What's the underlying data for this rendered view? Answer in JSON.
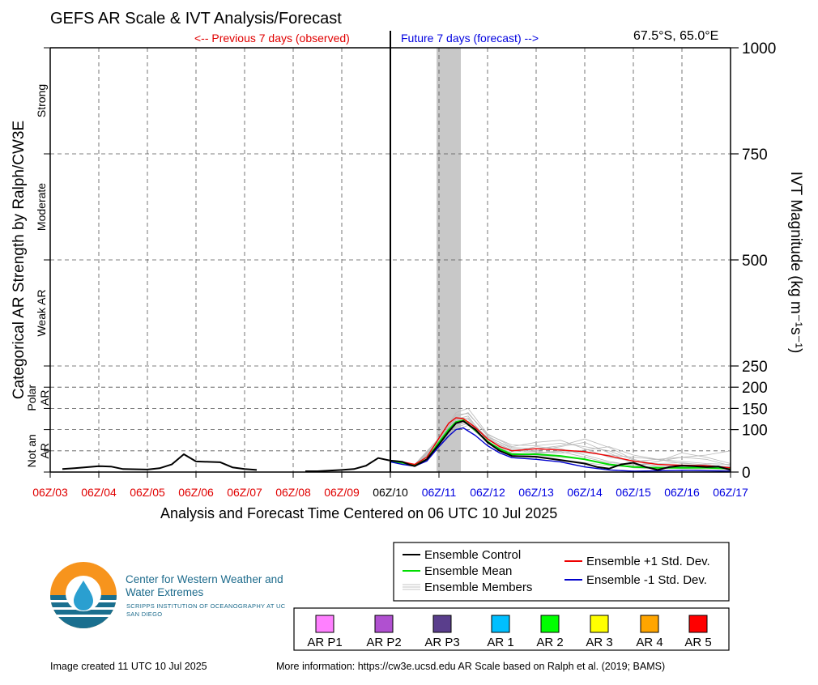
{
  "header": {
    "title": "GEFS AR Scale & IVT Analysis/Forecast",
    "previous_label": "<-- Previous 7 days (observed)",
    "future_label": "Future 7 days (forecast) -->",
    "location": "67.5°S, 65.0°E"
  },
  "footer": {
    "created": "Image created 11 UTC 10 Jul 2025",
    "more_info": "More information: https://cw3e.ucsd.edu AR Scale based on Ralph et al. (2019; BAMS)"
  },
  "logo": {
    "title": "Center for Western Weather and Water Extremes",
    "subtitle": "SCRIPPS INSTITUTION OF OCEANOGRAPHY AT UC SAN DIEGO"
  },
  "legend": {
    "lines": [
      {
        "label": "Ensemble Control",
        "color": "#000000"
      },
      {
        "label": "Ensemble Mean",
        "color": "#00dd00"
      },
      {
        "label": "Ensemble Members",
        "color": "#b0b0b0"
      },
      {
        "label": "Ensemble +1 Std. Dev.",
        "color": "#ee0000"
      },
      {
        "label": "Ensemble -1 Std. Dev.",
        "color": "#0000cc"
      }
    ],
    "ar_scale": [
      {
        "label": "AR P1",
        "color": "#ff80ff"
      },
      {
        "label": "AR P2",
        "color": "#b050d0"
      },
      {
        "label": "AR P3",
        "color": "#5a3e8c"
      },
      {
        "label": "AR 1",
        "color": "#00bfff"
      },
      {
        "label": "AR 2",
        "color": "#00ff00"
      },
      {
        "label": "AR 3",
        "color": "#ffff00"
      },
      {
        "label": "AR 4",
        "color": "#ffa500"
      },
      {
        "label": "AR 5",
        "color": "#ff0000"
      }
    ]
  },
  "chart_data": {
    "type": "line",
    "xlabel": "Analysis and Forecast Time Centered on 06 UTC 10 Jul 2025",
    "ylabel_right": "IVT Magnitude (kg m⁻¹s⁻¹)",
    "ylabel_left": "Categorical AR Strength by Ralph/CW3E",
    "x_tick_labels": [
      "06Z/03",
      "06Z/04",
      "06Z/05",
      "06Z/06",
      "06Z/07",
      "06Z/08",
      "06Z/09",
      "06Z/10",
      "06Z/11",
      "06Z/12",
      "06Z/13",
      "06Z/14",
      "06Z/15",
      "06Z/16",
      "06Z/17"
    ],
    "x_tick_colors": [
      "#e00000",
      "#e00000",
      "#e00000",
      "#e00000",
      "#e00000",
      "#e00000",
      "#e00000",
      "#000000",
      "#0000e0",
      "#0000e0",
      "#0000e0",
      "#0000e0",
      "#0000e0",
      "#0000e0",
      "#0000e0"
    ],
    "xlim_days": [
      0,
      14
    ],
    "analysis_time_day": 7,
    "shaded_window_days": [
      7.95,
      8.45
    ],
    "ylim": [
      0,
      1000
    ],
    "y_ticks_right": [
      0,
      100,
      150,
      200,
      250,
      500,
      750,
      1000
    ],
    "y_gridlines": [
      50,
      100,
      150,
      200,
      250,
      500,
      750
    ],
    "categories_left": [
      {
        "label": "Not an AR",
        "range": [
          0,
          100
        ]
      },
      {
        "label": "Polar AR",
        "range": [
          100,
          250
        ]
      },
      {
        "label": "Weak AR",
        "range": [
          250,
          500
        ]
      },
      {
        "label": "Moderate",
        "range": [
          500,
          750
        ]
      },
      {
        "label": "Strong",
        "range": [
          750,
          1000
        ]
      }
    ],
    "series": [
      {
        "name": "Ensemble Control",
        "color": "#000000",
        "x": [
          0.25,
          0.5,
          1,
          1.25,
          1.5,
          2,
          2.25,
          2.5,
          2.75,
          3,
          3.25,
          3.5,
          3.75,
          4,
          4.25,
          4.5,
          5.25,
          5.5,
          6,
          6.25,
          6.5,
          6.75,
          7,
          7.1,
          7.25,
          7.4,
          7.5,
          7.75,
          8,
          8.2,
          8.35,
          8.5,
          8.75,
          9,
          9.25,
          9.5,
          10,
          10.5,
          11,
          11.25,
          11.5,
          11.75,
          12,
          12.25,
          12.5,
          12.75,
          13,
          13.25,
          13.5,
          13.75,
          14
        ],
        "y": [
          7,
          9,
          14,
          13,
          7,
          6,
          9,
          18,
          42,
          25,
          24,
          23,
          11,
          7,
          5,
          null,
          2,
          2,
          5,
          7,
          15,
          33,
          27,
          26,
          24,
          17,
          14,
          30,
          65,
          95,
          115,
          120,
          100,
          70,
          50,
          38,
          36,
          28,
          20,
          12,
          8,
          18,
          22,
          12,
          5,
          12,
          15,
          14,
          12,
          13,
          5
        ]
      },
      {
        "name": "Ensemble Mean",
        "color": "#00dd00",
        "x": [
          7,
          7.25,
          7.5,
          7.75,
          8,
          8.2,
          8.35,
          8.5,
          8.75,
          9,
          9.25,
          9.5,
          10,
          10.5,
          11,
          11.5,
          12,
          12.5,
          13,
          13.5,
          14
        ],
        "y": [
          26,
          22,
          16,
          30,
          70,
          100,
          118,
          122,
          98,
          72,
          54,
          42,
          42,
          38,
          30,
          18,
          12,
          10,
          10,
          10,
          8
        ]
      },
      {
        "name": "Ensemble +1 Std. Dev.",
        "color": "#ee0000",
        "x": [
          7,
          7.25,
          7.5,
          7.75,
          8,
          8.2,
          8.35,
          8.5,
          8.75,
          9,
          9.25,
          9.5,
          10,
          10.5,
          11,
          11.5,
          12,
          12.5,
          13,
          13.5,
          14
        ],
        "y": [
          27,
          24,
          18,
          35,
          80,
          115,
          128,
          126,
          105,
          78,
          60,
          50,
          55,
          52,
          48,
          38,
          26,
          18,
          16,
          15,
          10
        ]
      },
      {
        "name": "Ensemble -1 Std. Dev.",
        "color": "#0000cc",
        "x": [
          7,
          7.25,
          7.5,
          7.75,
          8,
          8.2,
          8.35,
          8.5,
          8.75,
          9,
          9.25,
          9.5,
          10,
          10.5,
          11,
          11.5,
          12,
          12.5,
          13,
          13.5,
          14
        ],
        "y": [
          24,
          18,
          14,
          26,
          60,
          85,
          100,
          104,
          86,
          62,
          45,
          34,
          30,
          24,
          12,
          5,
          2,
          3,
          4,
          3,
          2
        ]
      }
    ],
    "members": [
      {
        "x": [
          7,
          7.5,
          8,
          8.35,
          8.6,
          9,
          9.5,
          10,
          10.5,
          11,
          11.5,
          12,
          12.5,
          13,
          13.5,
          14
        ],
        "y": [
          25,
          16,
          72,
          130,
          140,
          85,
          55,
          50,
          60,
          70,
          45,
          20,
          15,
          12,
          10,
          8
        ]
      },
      {
        "x": [
          7,
          7.5,
          8,
          8.35,
          8.6,
          9,
          9.5,
          10,
          10.5,
          11,
          11.5,
          12,
          12.5,
          13,
          13.5,
          14
        ],
        "y": [
          25,
          15,
          65,
          115,
          125,
          75,
          48,
          60,
          55,
          40,
          25,
          15,
          25,
          35,
          30,
          15
        ]
      },
      {
        "x": [
          7,
          7.5,
          8,
          8.35,
          8.6,
          9,
          9.5,
          10,
          10.5,
          11,
          11.5,
          12,
          12.5,
          13,
          13.5,
          14
        ],
        "y": [
          26,
          17,
          78,
          140,
          150,
          90,
          60,
          70,
          75,
          55,
          35,
          25,
          30,
          20,
          18,
          12
        ]
      },
      {
        "x": [
          7,
          7.5,
          8,
          8.35,
          8.6,
          9,
          9.5,
          10,
          10.5,
          11,
          11.5,
          12,
          12.5,
          13,
          13.5,
          14
        ],
        "y": [
          24,
          14,
          58,
          100,
          110,
          70,
          45,
          40,
          35,
          30,
          20,
          10,
          8,
          10,
          12,
          10
        ]
      },
      {
        "x": [
          7,
          7.5,
          8,
          8.35,
          8.6,
          9,
          9.5,
          10,
          10.5,
          11,
          11.5,
          12,
          12.5,
          13,
          13.5,
          14
        ],
        "y": [
          25,
          16,
          70,
          122,
          128,
          80,
          52,
          48,
          44,
          52,
          60,
          40,
          30,
          35,
          40,
          50
        ]
      },
      {
        "x": [
          7,
          7.5,
          8,
          8.35,
          8.6,
          9,
          9.5,
          10,
          10.5,
          11,
          11.5,
          12,
          12.5,
          13,
          13.5,
          14
        ],
        "y": [
          25,
          15,
          62,
          108,
          120,
          82,
          58,
          55,
          62,
          78,
          58,
          30,
          18,
          15,
          14,
          12
        ]
      },
      {
        "x": [
          7,
          7.5,
          8,
          8.35,
          8.6,
          9,
          9.5,
          10,
          10.5,
          11,
          11.5,
          12,
          12.5,
          13,
          13.5,
          14
        ],
        "y": [
          26,
          18,
          80,
          125,
          132,
          72,
          42,
          38,
          30,
          22,
          15,
          12,
          25,
          45,
          35,
          20
        ]
      },
      {
        "x": [
          7,
          7.5,
          8,
          8.35,
          8.6,
          9,
          9.5,
          10,
          10.5,
          11,
          11.5,
          12,
          12.5,
          13,
          13.5,
          14
        ],
        "y": [
          24,
          15,
          66,
          112,
          118,
          78,
          50,
          45,
          50,
          45,
          40,
          35,
          30,
          25,
          20,
          18
        ]
      },
      {
        "x": [
          7,
          7.5,
          8,
          8.35,
          8.6,
          9,
          9.5,
          10,
          10.5,
          11,
          11.5,
          12,
          12.5,
          13,
          13.5,
          14
        ],
        "y": [
          25,
          16,
          74,
          135,
          138,
          88,
          64,
          62,
          68,
          60,
          50,
          28,
          12,
          8,
          6,
          5
        ]
      },
      {
        "x": [
          7,
          7.5,
          8,
          8.35,
          8.6,
          9,
          9.5,
          10,
          10.5,
          11,
          11.5,
          12,
          12.5,
          13,
          13.5,
          14
        ],
        "y": [
          25,
          14,
          60,
          105,
          115,
          68,
          40,
          44,
          48,
          35,
          22,
          18,
          20,
          22,
          16,
          10
        ]
      }
    ],
    "legend_position": "bottom-right"
  }
}
